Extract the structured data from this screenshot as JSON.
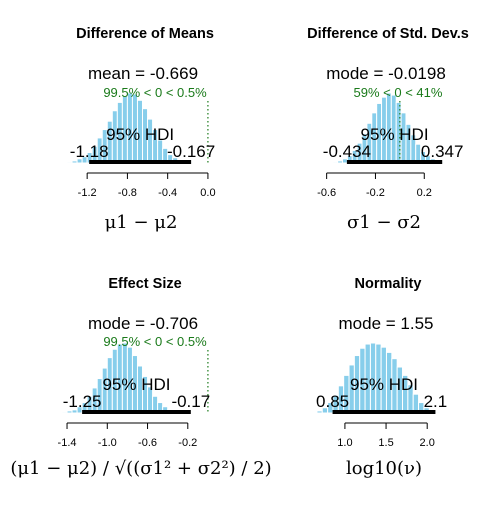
{
  "chart_data": [
    {
      "type": "bar",
      "title": "Difference of Means",
      "central_label": "mean = -0.669",
      "compare_label": "99.5% < 0 < 0.5%",
      "compare_value": 0,
      "hdi_label": "95% HDI",
      "hdi": [
        -1.18,
        -0.167
      ],
      "hdi_low_label": "-1.18",
      "hdi_high_label": "-0.167",
      "xlim": [
        -1.45,
        0.12
      ],
      "xticks": [
        -1.2,
        -0.8,
        -0.4,
        0.0
      ],
      "xtick_labels": [
        "-1.2",
        "-0.8",
        "-0.4",
        "0.0"
      ],
      "xlabel": "μ1 − μ2",
      "bin_start": -1.4,
      "bin_width": 0.05,
      "values": [
        1,
        2,
        4,
        6,
        10,
        16,
        24,
        32,
        40,
        50,
        58,
        64,
        67,
        66,
        60,
        52,
        42,
        32,
        22,
        14,
        8,
        5,
        3,
        2,
        1,
        0.5,
        0.3
      ]
    },
    {
      "type": "bar",
      "title": "Difference of Std. Dev.s",
      "central_label": "mode = -0.0198",
      "compare_label": "59% < 0 < 41%",
      "compare_value": 0,
      "hdi_label": "95% HDI",
      "hdi": [
        -0.434,
        0.347
      ],
      "hdi_low_label": "-0.434",
      "hdi_high_label": "0.347",
      "xlim": [
        -0.72,
        0.46
      ],
      "xticks": [
        -0.6,
        -0.2,
        0.2
      ],
      "xtick_labels": [
        "-0.6",
        "-0.2",
        "0.2"
      ],
      "xlabel": "σ1 − σ2",
      "bin_start": -0.55,
      "bin_width": 0.04,
      "values": [
        1,
        2,
        4,
        7,
        12,
        19,
        28,
        38,
        48,
        57,
        63,
        67,
        65,
        58,
        48,
        37,
        27,
        18,
        11,
        7,
        4,
        2,
        1
      ]
    },
    {
      "type": "bar",
      "title": "Effect Size",
      "central_label": "mode = -0.706",
      "compare_label": "99.5% < 0 < 0.5%",
      "compare_value": 0,
      "hdi_label": "95% HDI",
      "hdi": [
        -1.25,
        -0.17
      ],
      "hdi_low_label": "-1.25",
      "hdi_high_label": "-0.17",
      "xlim": [
        -1.45,
        0.12
      ],
      "xticks": [
        -1.4,
        -1.0,
        -0.6,
        -0.2
      ],
      "xtick_labels": [
        "-1.4",
        "-1.0",
        "-0.6",
        "-0.2"
      ],
      "xlabel": "(μ1 − μ2) / √((σ1² + σ2²) / 2)",
      "bin_start": -1.45,
      "bin_width": 0.05,
      "values": [
        1,
        2,
        3,
        6,
        10,
        16,
        24,
        33,
        43,
        53,
        61,
        66,
        67,
        63,
        55,
        45,
        35,
        25,
        16,
        10,
        6,
        3,
        2,
        1,
        0.5,
        0.3
      ]
    },
    {
      "type": "bar",
      "title": "Normality",
      "central_label": "mode = 1.55",
      "compare_label": "",
      "compare_value": null,
      "hdi_label": "95% HDI",
      "hdi": [
        0.85,
        2.1
      ],
      "hdi_low_label": "0.85",
      "hdi_high_label": "2.1",
      "xlim": [
        0.6,
        2.35
      ],
      "xticks": [
        1.0,
        1.5,
        2.0
      ],
      "xtick_labels": [
        "1.0",
        "1.5",
        "2.0"
      ],
      "xlabel": "log10(ν)",
      "bin_start": 0.66,
      "bin_width": 0.065,
      "values": [
        2,
        5,
        10,
        17,
        26,
        36,
        46,
        55,
        62,
        66,
        67,
        66,
        63,
        58,
        52,
        44,
        36,
        27,
        18,
        10,
        5,
        2,
        1,
        0.5
      ]
    }
  ]
}
